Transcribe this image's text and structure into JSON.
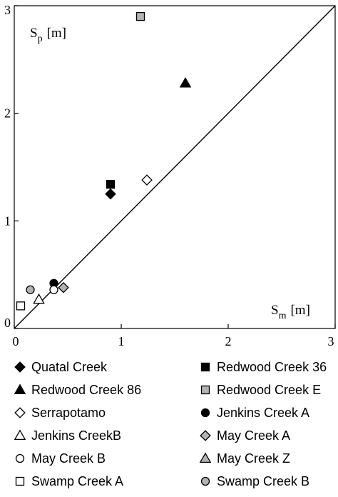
{
  "chart_data": {
    "type": "scatter",
    "xlim": [
      0,
      3
    ],
    "ylim": [
      0,
      3
    ],
    "xticks": [
      "0",
      "1",
      "2",
      "3"
    ],
    "yticks": [
      "0",
      "1",
      "2",
      "3"
    ],
    "xlabel": {
      "main": "S",
      "sub": "m",
      "unit": "[m]"
    },
    "ylabel": {
      "main": "S",
      "sub": "p",
      "unit": "[m]"
    },
    "reference_line": "1:1",
    "grid": false,
    "legend_position": "below",
    "series": [
      {
        "name": "Quatal Creek",
        "marker": "diamond",
        "fill": "#000000",
        "points": [
          [
            0.9,
            1.25
          ]
        ]
      },
      {
        "name": "Redwood Creek 36",
        "marker": "square",
        "fill": "#000000",
        "points": [
          [
            0.9,
            1.34
          ]
        ]
      },
      {
        "name": "Redwood Creek 86",
        "marker": "triangle",
        "fill": "#000000",
        "points": [
          [
            1.6,
            2.28
          ]
        ]
      },
      {
        "name": "Redwood Creek E",
        "marker": "square",
        "fill": "#b3b3b3",
        "points": [
          [
            1.18,
            2.9
          ]
        ]
      },
      {
        "name": "Serrapotamo",
        "marker": "diamond",
        "fill": "#ffffff",
        "points": [
          [
            1.24,
            1.38
          ]
        ]
      },
      {
        "name": "Jenkins Creek A",
        "marker": "circle",
        "fill": "#000000",
        "points": [
          [
            0.37,
            0.42
          ]
        ]
      },
      {
        "name": "Jenkins CreekB",
        "marker": "triangle",
        "fill": "#ffffff",
        "points": [
          [
            0.23,
            0.27
          ]
        ]
      },
      {
        "name": "May Creek A",
        "marker": "diamond",
        "fill": "#b3b3b3",
        "points": [
          [
            0.46,
            0.38
          ]
        ]
      },
      {
        "name": "May Creek B",
        "marker": "circle",
        "fill": "#ffffff",
        "points": [
          [
            0.37,
            0.36
          ]
        ]
      },
      {
        "name": "May Creek Z",
        "marker": "triangle",
        "fill": "#b3b3b3",
        "points": []
      },
      {
        "name": "Swamp Creek A",
        "marker": "square",
        "fill": "#ffffff",
        "points": [
          [
            0.06,
            0.21
          ]
        ]
      },
      {
        "name": "Swamp Creek B",
        "marker": "circle",
        "fill": "#b3b3b3",
        "points": [
          [
            0.15,
            0.36
          ]
        ]
      }
    ]
  }
}
